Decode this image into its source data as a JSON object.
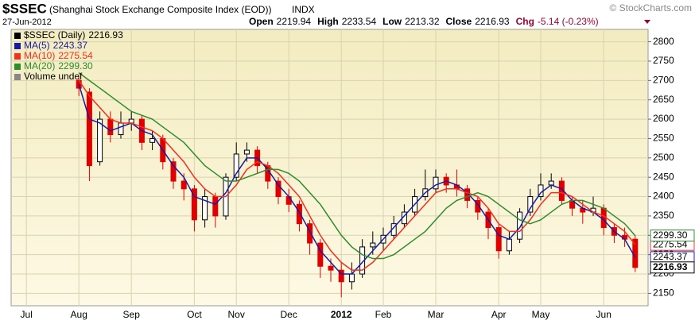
{
  "chart_data": {
    "type": "candlestick",
    "title": "$SSEC",
    "subtitle": "(Shanghai Stock Exchange Composite Index (EOD))",
    "exchange": "INDX",
    "date": "27-Jun-2012",
    "credit": "© StockCharts.com",
    "stats": [
      {
        "label": "Open",
        "value": 2219.94
      },
      {
        "label": "High",
        "value": 2233.54
      },
      {
        "label": "Low",
        "value": 2213.32
      },
      {
        "label": "Close",
        "value": 2216.93
      },
      {
        "label": "Chg",
        "value": "-5.14 (-0.23%)"
      }
    ],
    "price": {
      "name": "$SSEC (Daily)",
      "last": {
        "value": 2216.93,
        "label": "2216.93"
      },
      "open": [
        null,
        null,
        null,
        null,
        null,
        null,
        2700,
        2670,
        2490,
        2600,
        2560,
        2590,
        2600,
        2540,
        2550,
        2490,
        2440,
        2420,
        2340,
        2400,
        2350,
        2450,
        2510,
        2520,
        2480,
        2440,
        2400,
        2380,
        2330,
        2280,
        2220,
        2210,
        2180,
        2200,
        2270,
        2280,
        2300,
        2330,
        2360,
        2400,
        2420,
        2450,
        2430,
        2420,
        2390,
        2360,
        2320,
        2260,
        2290,
        2360,
        2400,
        2430,
        2440,
        2390,
        2370,
        2360,
        2370,
        2320,
        2300,
        2290
      ],
      "high": [
        null,
        null,
        null,
        null,
        null,
        null,
        2710,
        2680,
        2620,
        2620,
        2620,
        2620,
        2610,
        2570,
        2560,
        2500,
        2460,
        2430,
        2420,
        2410,
        2460,
        2540,
        2540,
        2530,
        2490,
        2450,
        2420,
        2390,
        2340,
        2290,
        2240,
        2230,
        2230,
        2290,
        2310,
        2320,
        2350,
        2380,
        2420,
        2470,
        2470,
        2460,
        2470,
        2430,
        2400,
        2370,
        2330,
        2310,
        2370,
        2420,
        2460,
        2460,
        2450,
        2400,
        2390,
        2400,
        2380,
        2330,
        2320,
        2300
      ],
      "low": [
        null,
        null,
        null,
        null,
        null,
        null,
        2660,
        2440,
        2480,
        2540,
        2550,
        2570,
        2520,
        2520,
        2470,
        2420,
        2390,
        2310,
        2320,
        2320,
        2340,
        2440,
        2490,
        2460,
        2420,
        2380,
        2360,
        2310,
        2250,
        2190,
        2180,
        2140,
        2160,
        2190,
        2250,
        2260,
        2290,
        2320,
        2350,
        2390,
        2410,
        2410,
        2400,
        2370,
        2340,
        2290,
        2240,
        2250,
        2280,
        2350,
        2390,
        2420,
        2380,
        2350,
        2330,
        2350,
        2300,
        2280,
        2270,
        2205
      ],
      "close": [
        null,
        null,
        null,
        null,
        null,
        null,
        2680,
        2480,
        2600,
        2560,
        2590,
        2600,
        2540,
        2550,
        2490,
        2440,
        2420,
        2340,
        2400,
        2350,
        2450,
        2510,
        2520,
        2480,
        2440,
        2400,
        2380,
        2330,
        2280,
        2220,
        2210,
        2180,
        2200,
        2270,
        2280,
        2300,
        2330,
        2360,
        2400,
        2420,
        2450,
        2430,
        2420,
        2390,
        2360,
        2320,
        2260,
        2290,
        2360,
        2400,
        2430,
        2440,
        2390,
        2370,
        2360,
        2370,
        2320,
        2300,
        2290,
        2217
      ]
    },
    "up_color": "#000000",
    "down_color": "#e00000",
    "series": [
      {
        "name": "MA(5)",
        "color": "#1a1aa0",
        "last": {
          "value": 2243.37,
          "label": "2243.37"
        },
        "values": [
          null,
          null,
          null,
          null,
          null,
          null,
          2690,
          2600,
          2590,
          2570,
          2580,
          2590,
          2570,
          2560,
          2520,
          2480,
          2450,
          2400,
          2390,
          2380,
          2410,
          2460,
          2500,
          2500,
          2470,
          2430,
          2400,
          2360,
          2310,
          2260,
          2230,
          2200,
          2200,
          2230,
          2260,
          2290,
          2320,
          2350,
          2380,
          2410,
          2430,
          2440,
          2430,
          2410,
          2380,
          2340,
          2300,
          2290,
          2320,
          2370,
          2410,
          2430,
          2420,
          2390,
          2370,
          2360,
          2340,
          2310,
          2290,
          2243
        ]
      },
      {
        "name": "MA(10)",
        "color": "#f03020",
        "last": {
          "value": 2275.54,
          "label": "2275.54"
        },
        "values": [
          null,
          null,
          null,
          null,
          null,
          null,
          2700,
          2660,
          2630,
          2600,
          2590,
          2590,
          2580,
          2570,
          2550,
          2520,
          2490,
          2450,
          2420,
          2400,
          2400,
          2430,
          2470,
          2490,
          2480,
          2460,
          2430,
          2400,
          2350,
          2300,
          2260,
          2230,
          2210,
          2210,
          2230,
          2260,
          2290,
          2320,
          2350,
          2380,
          2410,
          2420,
          2420,
          2410,
          2400,
          2370,
          2330,
          2310,
          2310,
          2340,
          2380,
          2410,
          2410,
          2400,
          2380,
          2360,
          2350,
          2330,
          2310,
          2276
        ]
      },
      {
        "name": "MA(20)",
        "color": "#2e8b2e",
        "last": {
          "value": 2299.3,
          "label": "2299.30"
        },
        "values": [
          null,
          null,
          null,
          null,
          null,
          null,
          2720,
          2700,
          2680,
          2660,
          2640,
          2620,
          2610,
          2600,
          2580,
          2560,
          2540,
          2510,
          2480,
          2460,
          2440,
          2440,
          2450,
          2460,
          2470,
          2470,
          2460,
          2440,
          2410,
          2380,
          2340,
          2300,
          2270,
          2250,
          2240,
          2240,
          2250,
          2270,
          2290,
          2310,
          2340,
          2370,
          2390,
          2400,
          2410,
          2400,
          2380,
          2360,
          2340,
          2330,
          2340,
          2360,
          2380,
          2390,
          2390,
          2380,
          2370,
          2350,
          2330,
          2299
        ]
      }
    ],
    "volume_label": "Volume undef",
    "categories": [
      null,
      "Jul",
      null,
      null,
      null,
      null,
      "Aug",
      null,
      null,
      null,
      null,
      "Sep",
      null,
      null,
      null,
      null,
      null,
      "Oct",
      null,
      null,
      null,
      "Nov",
      null,
      null,
      null,
      null,
      "Dec",
      null,
      null,
      null,
      null,
      "2012",
      null,
      null,
      null,
      "Feb",
      null,
      null,
      null,
      null,
      "Mar",
      null,
      null,
      null,
      null,
      null,
      "Apr",
      null,
      null,
      null,
      "May",
      null,
      null,
      null,
      null,
      null,
      "Jun",
      null,
      null,
      null
    ],
    "ylim": [
      2118,
      2832
    ],
    "yticks": [
      2150,
      2200,
      2250,
      2300,
      2350,
      2400,
      2450,
      2500,
      2550,
      2600,
      2650,
      2700,
      2750,
      2800
    ],
    "grid": true
  }
}
